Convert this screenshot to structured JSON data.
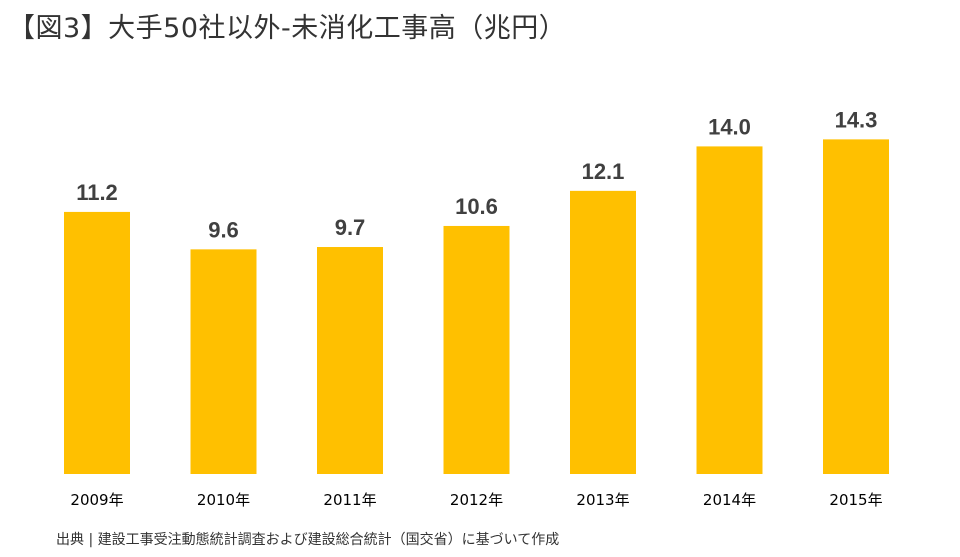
{
  "title": "【図3】大手50社以外-未消化工事高（兆円）",
  "source": "出典 | 建設工事受注動態統計調査および建設総合統計（国交省）に基づいて作成",
  "colors": {
    "bar": "#FFC000",
    "value_label": "#404040",
    "tick_label": "#000000"
  },
  "chart_data": {
    "type": "bar",
    "title": "【図3】大手50社以外-未消化工事高（兆円）",
    "xlabel": "",
    "ylabel": "",
    "unit": "兆円",
    "categories": [
      "2009年",
      "2010年",
      "2011年",
      "2012年",
      "2013年",
      "2014年",
      "2015年"
    ],
    "values": [
      11.2,
      9.6,
      9.7,
      10.6,
      12.1,
      14.0,
      14.3
    ],
    "value_labels": [
      "11.2",
      "9.6",
      "9.7",
      "10.6",
      "12.1",
      "14.0",
      "14.3"
    ],
    "ylim": [
      0,
      16
    ],
    "grid": false,
    "legend": "none"
  }
}
